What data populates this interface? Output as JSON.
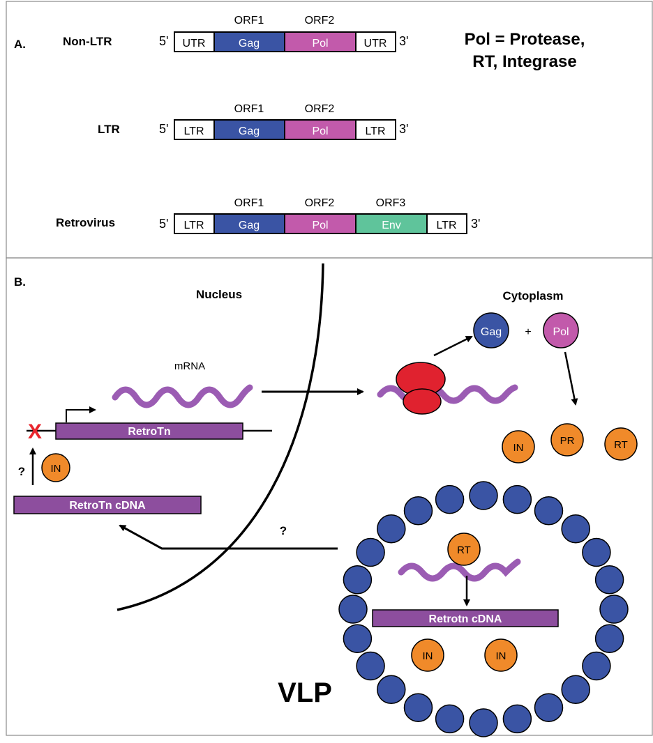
{
  "panel_a": {
    "label": "A.",
    "note_line1": "Pol = Protease,",
    "note_line2": "RT, Integrase",
    "end5": "5'",
    "end3": "3'",
    "constructs": [
      {
        "name": "Non-LTR",
        "orfs": [
          "ORF1",
          "ORF2"
        ],
        "segments": [
          "UTR",
          "Gag",
          "Pol",
          "UTR"
        ]
      },
      {
        "name": "LTR",
        "orfs": [
          "ORF1",
          "ORF2"
        ],
        "segments": [
          "LTR",
          "Gag",
          "Pol",
          "LTR"
        ]
      },
      {
        "name": "Retrovirus",
        "orfs": [
          "ORF1",
          "ORF2",
          "ORF3"
        ],
        "segments": [
          "LTR",
          "Gag",
          "Pol",
          "Env",
          "LTR"
        ]
      }
    ]
  },
  "panel_b": {
    "label": "B.",
    "nucleus_label": "Nucleus",
    "cytoplasm_label": "Cytoplasm",
    "mrna_label": "mRNA",
    "gene_label": "RetroTn",
    "blocked_mark": "X",
    "question_mark_1": "?",
    "question_mark_2": "?",
    "cdna_label": "RetroTn cDNA",
    "in_label": "IN",
    "gag_label": "Gag",
    "plus_label": "+",
    "pol_label": "Pol",
    "products": [
      "IN",
      "PR",
      "RT"
    ],
    "vlp_label": "VLP",
    "vlp_rt_label": "RT",
    "vlp_cdna_label": "Retrotn cDNA",
    "vlp_in_labels": [
      "IN",
      "IN"
    ]
  },
  "colors": {
    "gag_blue": "#3a54a4",
    "pol_magenta": "#c25aab",
    "env_green": "#5fc49b",
    "rna_purple": "#9b5cb3",
    "bar_purple": "#8d4e9e",
    "enzyme_orange": "#f08a2a",
    "ribosome_red": "#e0222f",
    "x_red": "#e8262d"
  }
}
